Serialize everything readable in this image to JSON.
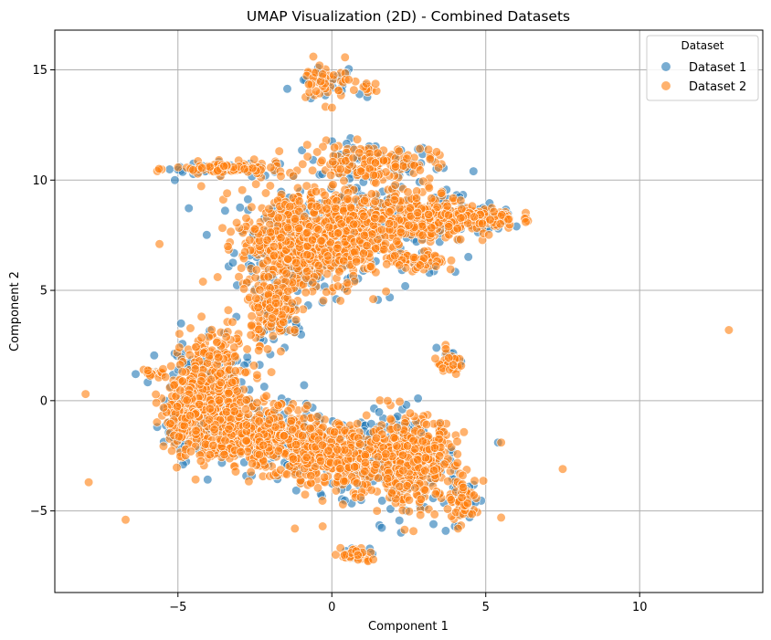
{
  "chart_data": {
    "type": "scatter",
    "title": "UMAP Visualization (2D) - Combined Datasets",
    "xlabel": "Component 1",
    "ylabel": "Component 2",
    "xlim": [
      -9,
      14
    ],
    "ylim": [
      -8.7,
      16.8
    ],
    "xticks": [
      -5,
      0,
      5,
      10
    ],
    "xtick_labels": [
      "−5",
      "0",
      "5",
      "10"
    ],
    "yticks": [
      -5,
      0,
      5,
      10,
      15
    ],
    "ytick_labels": [
      "−5",
      "0",
      "5",
      "10",
      "15"
    ],
    "grid": true,
    "legend": {
      "title": "Dataset",
      "placement": "top-right"
    },
    "colors": {
      "Dataset 1": "#1f77b4",
      "Dataset 2": "#ff7f0e"
    },
    "series": [
      {
        "name": "Dataset 1",
        "points": [
          [
            3.4,
            10.5
          ],
          [
            4.6,
            10.4
          ],
          [
            -5.1,
            10.0
          ],
          [
            -0.7,
            9.3
          ],
          [
            0.9,
            13.9
          ],
          [
            2.8,
            11.4
          ],
          [
            -1.0,
            3.0
          ],
          [
            -2.0,
            2.1
          ],
          [
            -5.0,
            1.4
          ],
          [
            -0.9,
            0.7
          ],
          [
            -2.6,
            -3.4
          ],
          [
            2.8,
            0.1
          ],
          [
            5.4,
            -1.9
          ],
          [
            4.1,
            -5.7
          ],
          [
            3.7,
            -5.9
          ],
          [
            6.0,
            7.9
          ],
          [
            5.1,
            7.8
          ],
          [
            -4.9,
            3.5
          ],
          [
            3.4,
            2.4
          ],
          [
            -5.3,
            -1.0
          ],
          [
            -1.2,
            3.1
          ],
          [
            3.3,
            -5.6
          ],
          [
            0.9,
            -6.9
          ],
          [
            -3.1,
            3.8
          ]
        ]
      },
      {
        "name": "Dataset 2",
        "points": [
          [
            12.9,
            3.2
          ],
          [
            7.5,
            -3.1
          ],
          [
            -8.0,
            0.3
          ],
          [
            -7.9,
            -3.7
          ],
          [
            -6.7,
            -5.4
          ],
          [
            -5.6,
            7.1
          ],
          [
            -1.2,
            -5.8
          ],
          [
            -0.3,
            -5.7
          ],
          [
            5.5,
            -1.9
          ],
          [
            5.5,
            -5.3
          ],
          [
            -0.8,
            11.6
          ],
          [
            6.3,
            8.1
          ],
          [
            4.1,
            -5.8
          ],
          [
            -0.6,
            15.6
          ],
          [
            -0.4,
            15.2
          ],
          [
            -0.3,
            14.8
          ]
        ]
      }
    ]
  },
  "clusters": [
    {
      "cx": -0.2,
      "cy": 14.4,
      "rx": 1.1,
      "ry": 0.9,
      "n": 45
    },
    {
      "cx": 1.2,
      "cy": 14.2,
      "rx": 0.3,
      "ry": 0.3,
      "n": 8
    },
    {
      "cx": -3.3,
      "cy": 10.5,
      "rx": 1.8,
      "ry": 0.3,
      "n": 90
    },
    {
      "cx": 1.3,
      "cy": 10.8,
      "rx": 2.0,
      "ry": 0.8,
      "n": 140
    },
    {
      "cx": -1.2,
      "cy": 7.2,
      "rx": 1.8,
      "ry": 2.4,
      "n": 500
    },
    {
      "cx": 0.4,
      "cy": 7.5,
      "rx": 1.2,
      "ry": 2.0,
      "n": 250
    },
    {
      "cx": 2.5,
      "cy": 8.3,
      "rx": 2.0,
      "ry": 1.2,
      "n": 330
    },
    {
      "cx": 4.7,
      "cy": 8.3,
      "rx": 1.3,
      "ry": 0.5,
      "n": 120
    },
    {
      "cx": 2.7,
      "cy": 6.3,
      "rx": 1.0,
      "ry": 0.5,
      "n": 60
    },
    {
      "cx": -1.8,
      "cy": 4.0,
      "rx": 0.8,
      "ry": 1.3,
      "n": 110
    },
    {
      "cx": 3.8,
      "cy": 1.7,
      "rx": 0.5,
      "ry": 0.5,
      "n": 30
    },
    {
      "cx": -5.8,
      "cy": 1.2,
      "rx": 0.5,
      "ry": 0.2,
      "n": 18
    },
    {
      "cx": -3.9,
      "cy": 0.5,
      "rx": 1.3,
      "ry": 2.6,
      "n": 380
    },
    {
      "cx": -2.3,
      "cy": -1.7,
      "rx": 1.9,
      "ry": 1.4,
      "n": 400
    },
    {
      "cx": 0.2,
      "cy": -2.5,
      "rx": 1.6,
      "ry": 1.5,
      "n": 350
    },
    {
      "cx": 2.6,
      "cy": -2.7,
      "rx": 1.4,
      "ry": 1.9,
      "n": 400
    },
    {
      "cx": 4.3,
      "cy": -4.5,
      "rx": 0.5,
      "ry": 1.0,
      "n": 60
    },
    {
      "cx": 0.8,
      "cy": -7.0,
      "rx": 0.5,
      "ry": 0.4,
      "n": 30
    },
    {
      "cx": -4.8,
      "cy": -0.8,
      "rx": 0.6,
      "ry": 1.6,
      "n": 120
    }
  ]
}
